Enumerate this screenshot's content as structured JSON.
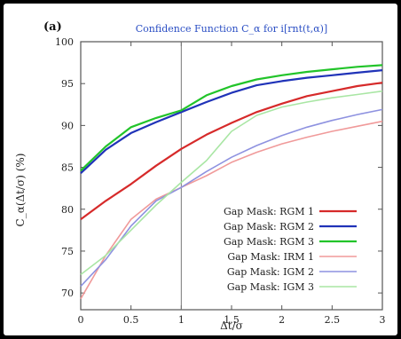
{
  "chart_data": {
    "type": "line",
    "panel_label": "(a)",
    "title": "Confidence Function C_α for i[rnt(t,α)]",
    "xlabel": "Δt/σ",
    "ylabel": "C_α(Δt/σ) (%)",
    "xlim": [
      0,
      3
    ],
    "ylim": [
      68,
      100
    ],
    "xticks": [
      "0",
      "0.5",
      "1",
      "1.5",
      "2",
      "2.5",
      "3"
    ],
    "yticks": [
      "70",
      "75",
      "80",
      "85",
      "90",
      "95",
      "100"
    ],
    "reference_line_x": 1,
    "grid": false,
    "legend_position": "bottom-right",
    "x": [
      0,
      0.25,
      0.5,
      0.75,
      1,
      1.25,
      1.5,
      1.75,
      2,
      2.25,
      2.5,
      2.75,
      3
    ],
    "series": [
      {
        "name": "Gap Mask: RGM 1",
        "color": "#d62a2a",
        "values": [
          78.8,
          81,
          83,
          85.2,
          87.2,
          88.9,
          90.3,
          91.6,
          92.6,
          93.5,
          94.1,
          94.7,
          95.1
        ]
      },
      {
        "name": "Gap Mask: RGM 2",
        "color": "#2033b8",
        "values": [
          84.3,
          87.1,
          89.1,
          90.4,
          91.6,
          92.8,
          93.9,
          94.8,
          95.3,
          95.7,
          96,
          96.3,
          96.6
        ]
      },
      {
        "name": "Gap Mask: RGM 3",
        "color": "#22c42a",
        "values": [
          84.6,
          87.5,
          89.8,
          90.9,
          91.8,
          93.6,
          94.7,
          95.5,
          96,
          96.4,
          96.7,
          97,
          97.2
        ]
      },
      {
        "name": "Gap Mask: IRM 1",
        "color": "#f09a9a",
        "values": [
          69.3,
          74.5,
          78.8,
          81.2,
          82.6,
          84,
          85.6,
          86.8,
          87.8,
          88.6,
          89.3,
          89.9,
          90.5
        ]
      },
      {
        "name": "Gap Mask: IGM 2",
        "color": "#8e92e0",
        "values": [
          70.8,
          74,
          78,
          81,
          82.6,
          84.5,
          86.2,
          87.6,
          88.8,
          89.8,
          90.6,
          91.3,
          91.9
        ]
      },
      {
        "name": "Gap Mask: IGM 3",
        "color": "#a9e6a4",
        "values": [
          72.2,
          74.5,
          77.5,
          80.5,
          83.2,
          85.8,
          89.3,
          91.2,
          92.2,
          92.8,
          93.3,
          93.7,
          94.1
        ]
      }
    ]
  }
}
